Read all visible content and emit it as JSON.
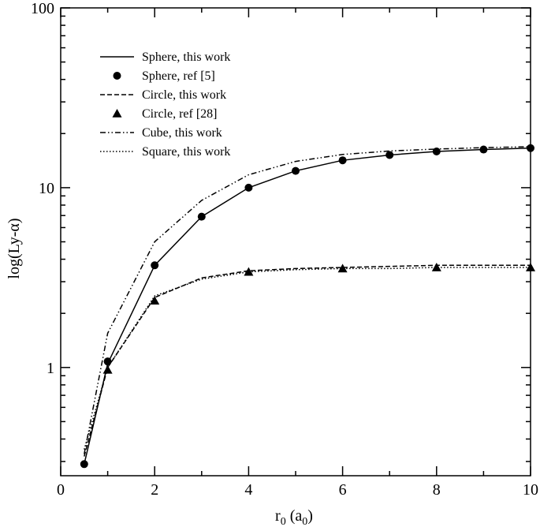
{
  "chart_data": {
    "type": "line",
    "xlabel_main": "r",
    "xlabel_sub1": "0",
    "xlabel_mid": " (a",
    "xlabel_sub2": "0",
    "xlabel_end": ")",
    "ylabel": "log(Ly-α)",
    "y_scale": "log",
    "xlim": [
      0,
      10
    ],
    "ylim": [
      0.25,
      100
    ],
    "x_ticks": [
      0,
      2,
      4,
      6,
      8,
      10
    ],
    "x_tick_labels": [
      "0",
      "2",
      "4",
      "6",
      "8",
      "10"
    ],
    "y_ticks": [
      1,
      10,
      100
    ],
    "y_tick_labels": [
      "1",
      "10",
      "100"
    ],
    "legend_position": "top-left",
    "series": [
      {
        "name": "Sphere, this work",
        "kind": "line",
        "dash": "solid",
        "x": [
          0.5,
          1,
          2,
          3,
          4,
          5,
          6,
          7,
          8,
          9,
          10
        ],
        "y": [
          0.29,
          1.05,
          3.7,
          6.9,
          10.0,
          12.4,
          14.2,
          15.2,
          15.9,
          16.3,
          16.6
        ]
      },
      {
        "name": "Sphere, ref [5]",
        "kind": "marker",
        "marker": "circle",
        "x": [
          0.5,
          1,
          2,
          3,
          4,
          5,
          6,
          7,
          8,
          9,
          10
        ],
        "y": [
          0.29,
          1.08,
          3.7,
          6.9,
          10.0,
          12.4,
          14.2,
          15.2,
          15.9,
          16.3,
          16.6
        ]
      },
      {
        "name": "Circle, this work",
        "kind": "line",
        "dash": "dashed",
        "x": [
          0.5,
          1,
          2,
          3,
          4,
          5,
          6,
          7,
          8,
          9,
          10
        ],
        "y": [
          0.32,
          1.0,
          2.45,
          3.15,
          3.45,
          3.55,
          3.6,
          3.65,
          3.7,
          3.7,
          3.7
        ]
      },
      {
        "name": "Circle, ref [28]",
        "kind": "marker",
        "marker": "triangle",
        "x": [
          1,
          2,
          4,
          6,
          8,
          10
        ],
        "y": [
          0.97,
          2.35,
          3.4,
          3.55,
          3.6,
          3.6
        ]
      },
      {
        "name": "Cube, this work",
        "kind": "line",
        "dash": "dashdotdot",
        "x": [
          0.5,
          1,
          2,
          3,
          4,
          5,
          6,
          7,
          8,
          9,
          10
        ],
        "y": [
          0.33,
          1.55,
          5.0,
          8.5,
          11.8,
          14.0,
          15.3,
          16.0,
          16.4,
          16.7,
          16.9
        ]
      },
      {
        "name": "Square, this work",
        "kind": "line",
        "dash": "dotted",
        "x": [
          0.5,
          1,
          2,
          3,
          4,
          5,
          6,
          7,
          8,
          9,
          10
        ],
        "y": [
          0.35,
          1.0,
          2.5,
          3.1,
          3.4,
          3.5,
          3.55,
          3.55,
          3.6,
          3.6,
          3.6
        ]
      }
    ]
  }
}
